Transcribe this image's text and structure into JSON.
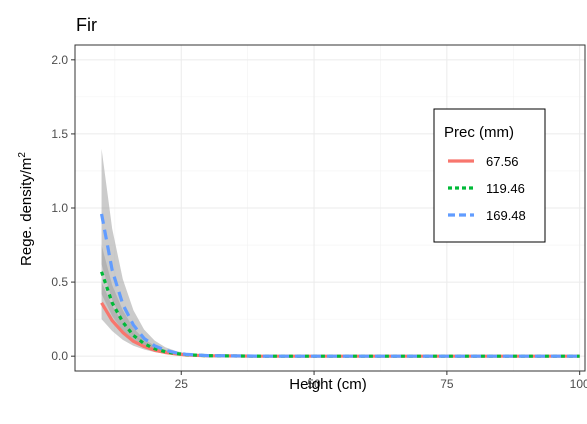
{
  "chart_data": {
    "type": "line",
    "title": "Fir",
    "xlabel": "Height (cm)",
    "ylabel_main": "Rege. density/m",
    "ylabel_sup": "2",
    "xlim": [
      5,
      101
    ],
    "ylim": [
      -0.1,
      2.1
    ],
    "xticks": [
      25,
      50,
      75,
      100
    ],
    "xtick_labels": [
      "25",
      "50",
      "75",
      "100"
    ],
    "yticks": [
      0.0,
      0.5,
      1.0,
      1.5,
      2.0
    ],
    "ytick_labels": [
      "0.0",
      "0.5",
      "1.0",
      "1.5",
      "2.0"
    ],
    "grid": true,
    "legend": {
      "title": "Prec (mm)",
      "placement": "top-right"
    },
    "x": [
      10,
      12,
      14,
      16,
      18,
      20,
      22,
      24,
      26,
      30,
      40,
      50,
      60,
      70,
      80,
      90,
      100
    ],
    "series": [
      {
        "name": "67.56",
        "color": "#F8766D",
        "dash": "solid",
        "values": [
          0.36,
          0.24,
          0.16,
          0.1,
          0.065,
          0.04,
          0.025,
          0.015,
          0.008,
          0.003,
          0.0,
          0.0,
          0.0,
          0.0,
          0.0,
          0.0,
          0.0
        ],
        "ci_lower": [
          0.25,
          0.17,
          0.11,
          0.07,
          0.045,
          0.027,
          0.016,
          0.009,
          0.004,
          0.001,
          0.0,
          0.0,
          0.0,
          0.0,
          0.0,
          0.0,
          0.0
        ],
        "ci_upper": [
          0.5,
          0.34,
          0.23,
          0.15,
          0.095,
          0.06,
          0.038,
          0.024,
          0.014,
          0.006,
          0.0,
          0.0,
          0.0,
          0.0,
          0.0,
          0.0,
          0.0
        ]
      },
      {
        "name": "119.46",
        "color": "#00BA38",
        "dash": "dotted",
        "values": [
          0.57,
          0.36,
          0.23,
          0.14,
          0.085,
          0.05,
          0.03,
          0.018,
          0.01,
          0.003,
          0.0,
          0.0,
          0.0,
          0.0,
          0.0,
          0.0,
          0.0
        ],
        "ci_lower": [
          0.42,
          0.27,
          0.17,
          0.1,
          0.06,
          0.035,
          0.02,
          0.011,
          0.005,
          0.001,
          0.0,
          0.0,
          0.0,
          0.0,
          0.0,
          0.0,
          0.0
        ],
        "ci_upper": [
          0.75,
          0.48,
          0.31,
          0.19,
          0.115,
          0.07,
          0.043,
          0.026,
          0.015,
          0.006,
          0.0,
          0.0,
          0.0,
          0.0,
          0.0,
          0.0,
          0.0
        ]
      },
      {
        "name": "169.48",
        "color": "#619CFF",
        "dash": "dashed",
        "values": [
          0.96,
          0.58,
          0.35,
          0.21,
          0.12,
          0.07,
          0.04,
          0.023,
          0.012,
          0.004,
          0.0,
          0.0,
          0.0,
          0.0,
          0.0,
          0.0,
          0.0
        ],
        "ci_lower": [
          0.62,
          0.38,
          0.23,
          0.14,
          0.08,
          0.045,
          0.025,
          0.014,
          0.007,
          0.002,
          0.0,
          0.0,
          0.0,
          0.0,
          0.0,
          0.0,
          0.0
        ],
        "ci_upper": [
          1.4,
          0.86,
          0.52,
          0.31,
          0.18,
          0.105,
          0.06,
          0.035,
          0.02,
          0.008,
          0.0,
          0.0,
          0.0,
          0.0,
          0.0,
          0.0,
          0.0
        ]
      }
    ]
  }
}
